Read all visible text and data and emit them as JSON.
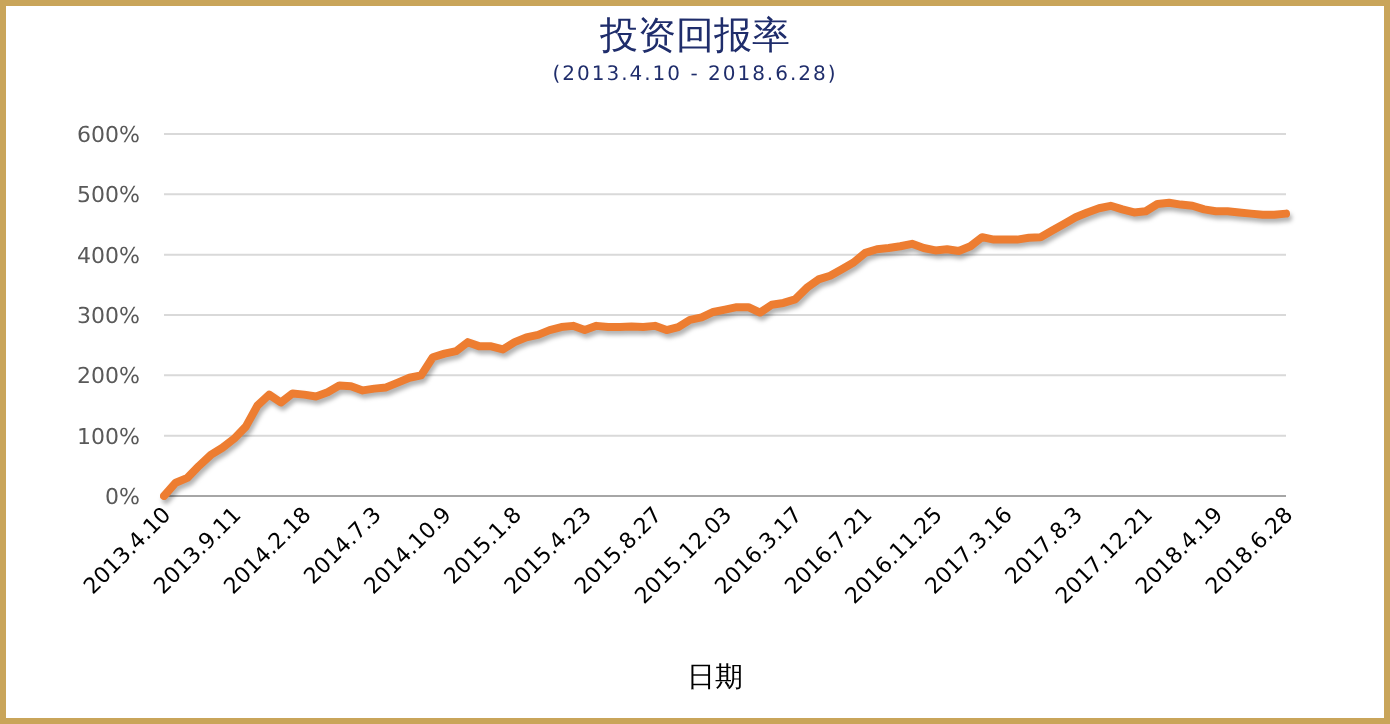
{
  "chart_data": {
    "type": "line",
    "title": "投资回报率",
    "subtitle": "(2013.4.10 - 2018.6.28)",
    "xlabel": "日期",
    "categories": [
      "2013.4.10",
      null,
      null,
      null,
      null,
      null,
      "2013.9.11",
      null,
      null,
      null,
      null,
      null,
      "2014.2.18",
      null,
      null,
      null,
      null,
      null,
      "2014.7.3",
      null,
      null,
      null,
      null,
      null,
      "2014.10.9",
      null,
      null,
      null,
      null,
      null,
      "2015.1.8",
      null,
      null,
      null,
      null,
      null,
      "2015.4.23",
      null,
      null,
      null,
      null,
      null,
      "2015.8.27",
      null,
      null,
      null,
      null,
      null,
      "2015.12.03",
      null,
      null,
      null,
      null,
      null,
      "2016.3.17",
      null,
      null,
      null,
      null,
      null,
      "2016.7.21",
      null,
      null,
      null,
      null,
      null,
      "2016.11.25",
      null,
      null,
      null,
      null,
      null,
      "2017.3.16",
      null,
      null,
      null,
      null,
      null,
      "2017.8.3",
      null,
      null,
      null,
      null,
      null,
      "2017.12.21",
      null,
      null,
      null,
      null,
      null,
      "2018.4.19",
      null,
      null,
      null,
      null,
      null,
      "2018.6.28"
    ],
    "series": [
      {
        "color": "#ed7d31",
        "values": [
          0,
          22,
          30,
          50,
          68,
          80,
          95,
          115,
          150,
          168,
          155,
          170,
          168,
          165,
          172,
          183,
          182,
          175,
          178,
          180,
          188,
          196,
          200,
          230,
          236,
          240,
          255,
          248,
          248,
          243,
          255,
          263,
          267,
          275,
          280,
          282,
          275,
          282,
          280,
          280,
          281,
          280,
          282,
          275,
          280,
          292,
          296,
          305,
          309,
          313,
          313,
          304,
          317,
          320,
          326,
          345,
          359,
          365,
          376,
          387,
          403,
          409,
          411,
          414,
          418,
          411,
          407,
          409,
          406,
          414,
          429,
          425,
          425,
          425,
          428,
          429,
          440,
          451,
          462,
          470,
          477,
          481,
          475,
          470,
          472,
          484,
          486,
          483,
          481,
          475,
          472,
          472,
          470,
          468,
          466,
          466,
          468
        ]
      }
    ],
    "ylim": [
      0,
      600
    ],
    "yticks": [
      {
        "value": 0,
        "label": "0%"
      },
      {
        "value": 100,
        "label": "100%"
      },
      {
        "value": 200,
        "label": "200%"
      },
      {
        "value": 300,
        "label": "300%"
      },
      {
        "value": 400,
        "label": "400%"
      },
      {
        "value": 500,
        "label": "500%"
      },
      {
        "value": 600,
        "label": "600%"
      }
    ],
    "grid": "y"
  }
}
